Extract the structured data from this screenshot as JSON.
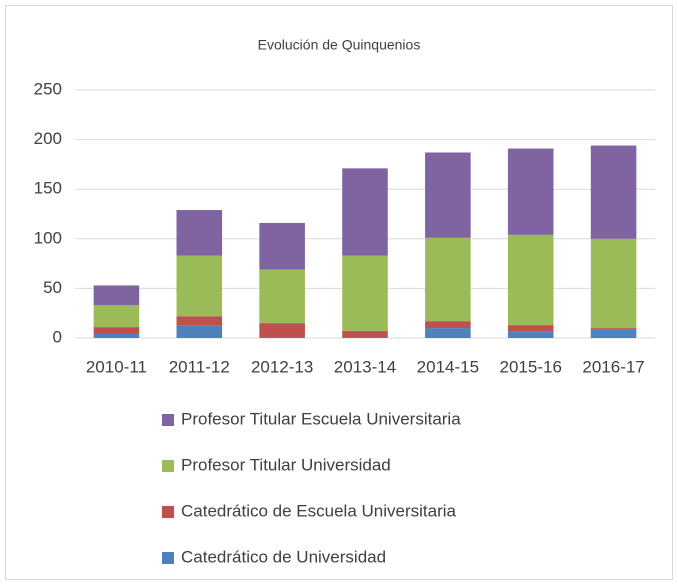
{
  "chart_data": {
    "type": "stacked_bar",
    "title": "Evolución de Quinquenios",
    "categories": [
      "2010-11",
      "2011-12",
      "2012-13",
      "2013-14",
      "2014-15",
      "2015-16",
      "2016-17"
    ],
    "series": [
      {
        "name": "Catedrático de Universidad",
        "color": "#4f81bd",
        "values": [
          4,
          13,
          1,
          1,
          10,
          7,
          9
        ]
      },
      {
        "name": "Catedrático de Escuela Universitaria",
        "color": "#c0504d",
        "values": [
          7,
          9,
          14,
          6,
          7,
          6,
          1
        ]
      },
      {
        "name": "Profesor Titular Universidad",
        "color": "#9bbb59",
        "values": [
          22,
          61,
          54,
          76,
          84,
          91,
          90
        ]
      },
      {
        "name": "Profesor Titular Escuela Universitaria",
        "color": "#8064a2",
        "values": [
          20,
          46,
          47,
          88,
          86,
          87,
          94
        ]
      }
    ],
    "ylim": [
      0,
      250
    ],
    "yticks": [
      0,
      50,
      100,
      150,
      200,
      250
    ],
    "grid": true
  }
}
